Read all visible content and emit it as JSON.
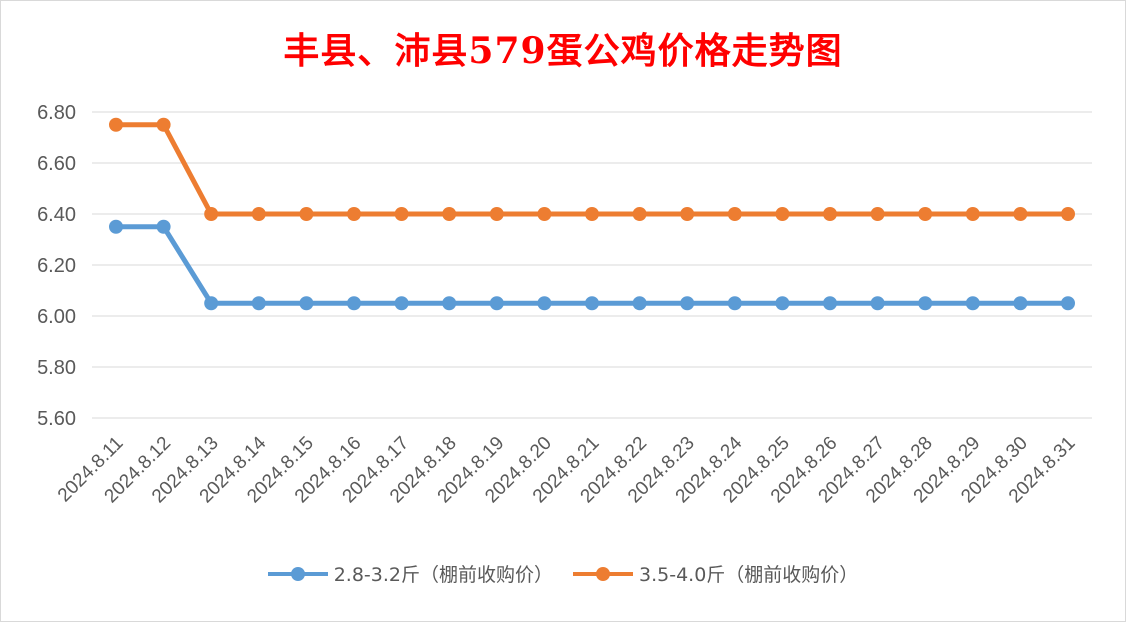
{
  "chart_data": {
    "type": "line",
    "title": "丰县、沛县579蛋公鸡价格走势图",
    "x": [
      "2024.8.11",
      "2024.8.12",
      "2024.8.13",
      "2024.8.14",
      "2024.8.15",
      "2024.8.16",
      "2024.8.17",
      "2024.8.18",
      "2024.8.19",
      "2024.8.20",
      "2024.8.21",
      "2024.8.22",
      "2024.8.23",
      "2024.8.24",
      "2024.8.25",
      "2024.8.26",
      "2024.8.27",
      "2024.8.28",
      "2024.8.29",
      "2024.8.30",
      "2024.8.31"
    ],
    "series": [
      {
        "name": "2.8-3.2斤（棚前收购价）",
        "color": "#5b9bd5",
        "values": [
          6.35,
          6.35,
          6.05,
          6.05,
          6.05,
          6.05,
          6.05,
          6.05,
          6.05,
          6.05,
          6.05,
          6.05,
          6.05,
          6.05,
          6.05,
          6.05,
          6.05,
          6.05,
          6.05,
          6.05,
          6.05
        ]
      },
      {
        "name": "3.5-4.0斤（棚前收购价）",
        "color": "#ed7d31",
        "values": [
          6.75,
          6.75,
          6.4,
          6.4,
          6.4,
          6.4,
          6.4,
          6.4,
          6.4,
          6.4,
          6.4,
          6.4,
          6.4,
          6.4,
          6.4,
          6.4,
          6.4,
          6.4,
          6.4,
          6.4,
          6.4
        ]
      }
    ],
    "yticks": [
      "5.60",
      "5.80",
      "6.00",
      "6.20",
      "6.40",
      "6.60",
      "6.80"
    ],
    "ylim": [
      5.6,
      6.8
    ],
    "grid": true,
    "legend": "bottom",
    "title_color": "#ff0000"
  }
}
